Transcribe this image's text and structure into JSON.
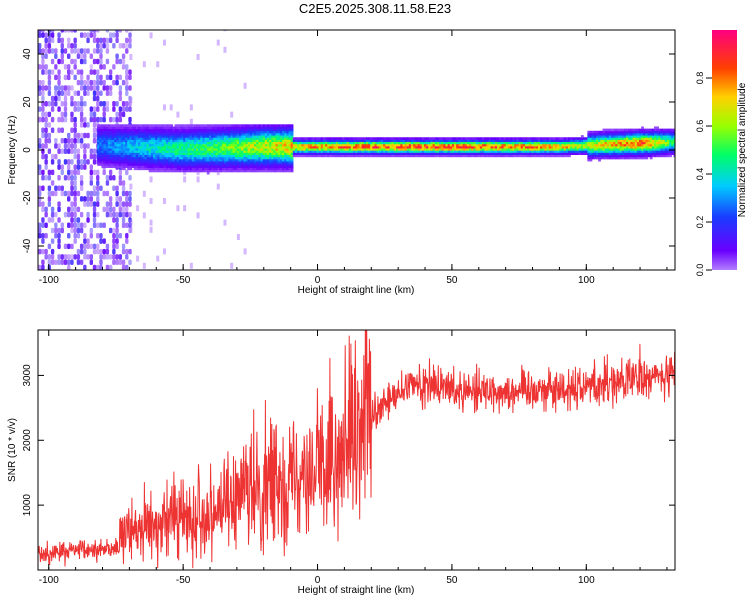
{
  "figure_title": "C2E5.2025.308.11.58.E23",
  "chart_data": [
    {
      "type": "heatmap",
      "xlabel": "Height of straight line (km)",
      "ylabel": "Frequency (Hz)",
      "xlim": [
        -104,
        133
      ],
      "ylim": [
        -50,
        50
      ],
      "xticks": [
        -100,
        -50,
        0,
        50,
        100
      ],
      "yticks": [
        -40,
        -20,
        0,
        20,
        40
      ],
      "colorbar": {
        "label": "Normalized spectral amplitude",
        "range": [
          0,
          1
        ],
        "ticks": [
          "0.0",
          "0.2",
          "0.4",
          "0.6",
          "0.8"
        ],
        "tick_values": [
          0,
          0.2,
          0.4,
          0.6,
          0.8
        ],
        "colormap": "rainbow (purple-blue-cyan-green-yellow-orange-red-magenta)"
      },
      "description_series": [
        {
          "name": "ridge_center_hz",
          "x": [
            -80,
            -50,
            -20,
            0,
            30,
            60,
            90,
            110,
            133
          ],
          "values": [
            1.5,
            0,
            1,
            1,
            1,
            1,
            1,
            2,
            3
          ]
        },
        {
          "name": "ridge_peak_amplitude",
          "x": [
            -80,
            -60,
            -40,
            -20,
            0,
            20,
            50,
            80,
            100,
            120,
            133
          ],
          "values": [
            0.3,
            0.45,
            0.55,
            0.7,
            0.85,
            0.9,
            0.9,
            0.85,
            0.7,
            0.9,
            0.5
          ]
        }
      ]
    },
    {
      "type": "line",
      "xlabel": "Height of straight line (km)",
      "ylabel": "SNR (10 * v/v)",
      "xlim": [
        -104,
        133
      ],
      "ylim": [
        0,
        3700
      ],
      "xticks": [
        -100,
        -50,
        0,
        50,
        100
      ],
      "yticks": [
        1000,
        2000,
        3000
      ],
      "series": [
        {
          "name": "SNR",
          "color": "#ee3333",
          "envelope_x": [
            -104,
            -95,
            -85,
            -75,
            -70,
            -65,
            -60,
            -55,
            -50,
            -45,
            -40,
            -35,
            -30,
            -25,
            -20,
            -15,
            -10,
            -5,
            0,
            5,
            10,
            15,
            20,
            25,
            30,
            35,
            40,
            50,
            60,
            70,
            80,
            90,
            100,
            110,
            120,
            133
          ],
          "envelope_mean": [
            250,
            280,
            300,
            350,
            600,
            700,
            650,
            800,
            750,
            850,
            900,
            1000,
            1000,
            1200,
            1250,
            1300,
            1450,
            1500,
            1550,
            1600,
            1600,
            1900,
            2300,
            2550,
            2700,
            2850,
            2850,
            2800,
            2780,
            2750,
            2800,
            2780,
            2850,
            2900,
            2950,
            3000
          ]
        }
      ]
    }
  ]
}
